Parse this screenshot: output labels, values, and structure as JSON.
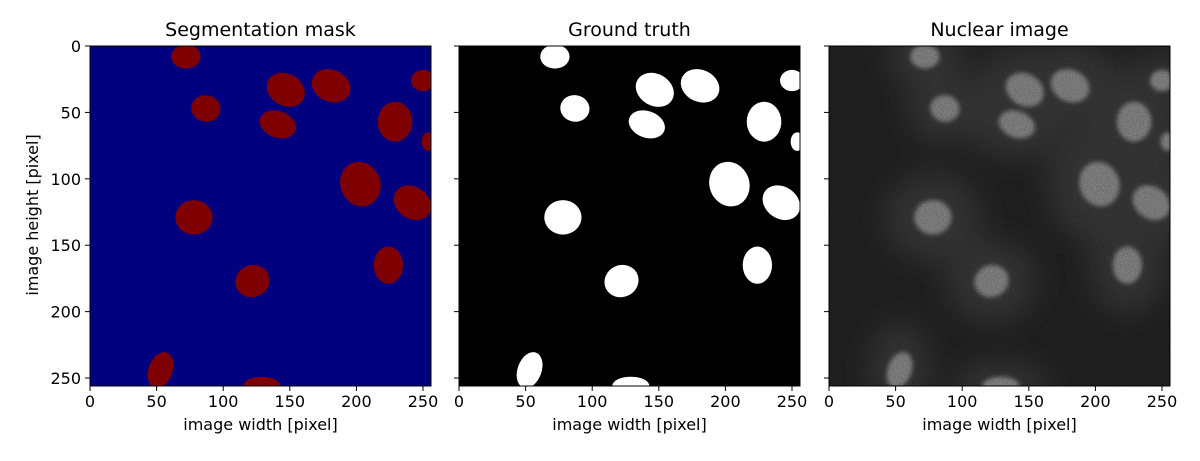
{
  "figure": {
    "shared_ylabel": "image height [pixel]",
    "colors": {
      "mask_background": "#00007f",
      "mask_foreground": "#7f0000",
      "truth_background": "#000000",
      "truth_foreground": "#ffffff",
      "nuclear_background": "#272727",
      "nuclear_cytoplasm": "#3f3f3f",
      "nuclear_nucleus": "#9a9a9a"
    }
  },
  "chart_data": [
    {
      "type": "heatmap",
      "title": "Segmentation mask",
      "xlabel": "image width [pixel]",
      "ylabel": "image height [pixel]",
      "xlim": [
        0,
        256
      ],
      "ylim": [
        256,
        0
      ],
      "xticks": [
        0,
        50,
        100,
        150,
        200,
        250
      ],
      "yticks": [
        0,
        50,
        100,
        150,
        200,
        250
      ],
      "colormap": "jet"
    },
    {
      "type": "heatmap",
      "title": "Ground truth",
      "xlabel": "image width [pixel]",
      "ylabel": "",
      "xlim": [
        0,
        256
      ],
      "ylim": [
        256,
        0
      ],
      "xticks": [
        0,
        50,
        100,
        150,
        200,
        250
      ],
      "yticks": [],
      "colormap": "gray"
    },
    {
      "type": "heatmap",
      "title": "Nuclear image",
      "xlabel": "image width [pixel]",
      "ylabel": "",
      "xlim": [
        0,
        256
      ],
      "ylim": [
        256,
        0
      ],
      "xticks": [
        0,
        50,
        100,
        150,
        200,
        250
      ],
      "yticks": [],
      "colormap": "gray"
    }
  ],
  "nuclei": [
    {
      "cx": 72,
      "cy": 8,
      "rx": 11,
      "ry": 9,
      "rot": 0
    },
    {
      "cx": 87,
      "cy": 47,
      "rx": 11,
      "ry": 10,
      "rot": 10
    },
    {
      "cx": 147,
      "cy": 33,
      "rx": 15,
      "ry": 12,
      "rot": 30
    },
    {
      "cx": 181,
      "cy": 30,
      "rx": 15,
      "ry": 12,
      "rot": 25
    },
    {
      "cx": 250,
      "cy": 26,
      "rx": 9,
      "ry": 8,
      "rot": 0
    },
    {
      "cx": 141,
      "cy": 59,
      "rx": 14,
      "ry": 10,
      "rot": 20
    },
    {
      "cx": 229,
      "cy": 57,
      "rx": 13,
      "ry": 15,
      "rot": 0
    },
    {
      "cx": 254,
      "cy": 72,
      "rx": 5,
      "ry": 7,
      "rot": 0
    },
    {
      "cx": 203,
      "cy": 104,
      "rx": 15,
      "ry": 17,
      "rot": -20
    },
    {
      "cx": 242,
      "cy": 118,
      "rx": 15,
      "ry": 12,
      "rot": 35
    },
    {
      "cx": 78,
      "cy": 129,
      "rx": 14,
      "ry": 13,
      "rot": 0
    },
    {
      "cx": 224,
      "cy": 165,
      "rx": 11,
      "ry": 14,
      "rot": 0
    },
    {
      "cx": 122,
      "cy": 177,
      "rx": 13,
      "ry": 12,
      "rot": -25
    },
    {
      "cx": 53,
      "cy": 244,
      "rx": 9,
      "ry": 14,
      "rot": 20
    },
    {
      "cx": 129,
      "cy": 256,
      "rx": 14,
      "ry": 7,
      "rot": 0
    }
  ]
}
